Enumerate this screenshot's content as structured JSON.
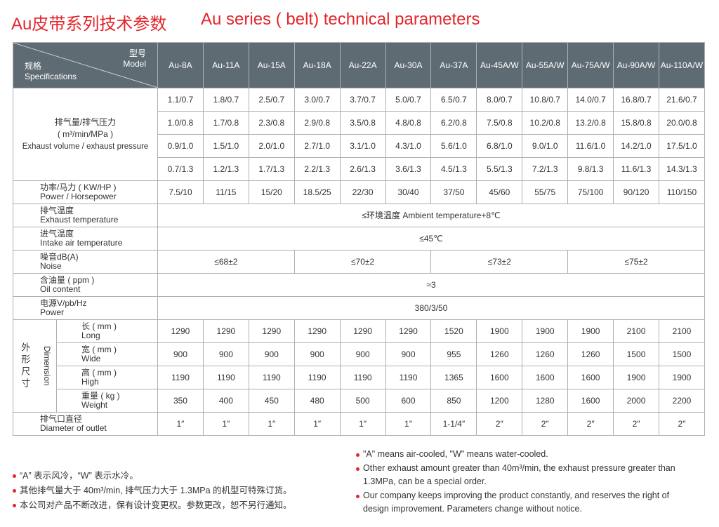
{
  "title_cn": "Au皮带系列技术参数",
  "title_en": "Au series ( belt) technical parameters",
  "colors": {
    "title": "#e3262c",
    "header_bg": "#5f6b73"
  },
  "header": {
    "model_cn": "型号",
    "model_en": "Model",
    "spec_cn": "规格",
    "spec_en": "Specifications",
    "models": [
      "Au-8A",
      "Au-11A",
      "Au-15A",
      "Au-18A",
      "Au-22A",
      "Au-30A",
      "Au-37A",
      "Au-45A/W",
      "Au-55A/W",
      "Au-75A/W",
      "Au-90A/W",
      "Au-110A/W"
    ]
  },
  "exhaust": {
    "label_cn": "排气量/排气压力",
    "label_unit": "( m³/min/MPa )",
    "label_en": "Exhaust volume / exhaust pressure",
    "rows": [
      [
        "1.1/0.7",
        "1.8/0.7",
        "2.5/0.7",
        "3.0/0.7",
        "3.7/0.7",
        "5.0/0.7",
        "6.5/0.7",
        "8.0/0.7",
        "10.8/0.7",
        "14.0/0.7",
        "16.8/0.7",
        "21.6/0.7"
      ],
      [
        "1.0/0.8",
        "1.7/0.8",
        "2.3/0.8",
        "2.9/0.8",
        "3.5/0.8",
        "4.8/0.8",
        "6.2/0.8",
        "7.5/0.8",
        "10.2/0.8",
        "13.2/0.8",
        "15.8/0.8",
        "20.0/0.8"
      ],
      [
        "0.9/1.0",
        "1.5/1.0",
        "2.0/1.0",
        "2.7/1.0",
        "3.1/1.0",
        "4.3/1.0",
        "5.6/1.0",
        "6.8/1.0",
        "9.0/1.0",
        "11.6/1.0",
        "14.2/1.0",
        "17.5/1.0"
      ],
      [
        "0.7/1.3",
        "1.2/1.3",
        "1.7/1.3",
        "2.2/1.3",
        "2.6/1.3",
        "3.6/1.3",
        "4.5/1.3",
        "5.5/1.3",
        "7.2/1.3",
        "9.8/1.3",
        "11.6/1.3",
        "14.3/1.3"
      ]
    ]
  },
  "power": {
    "label_cn": "功率/马力 ( KW/HP )",
    "label_en": "Power / Horsepower",
    "values": [
      "7.5/10",
      "11/15",
      "15/20",
      "18.5/25",
      "22/30",
      "30/40",
      "37/50",
      "45/60",
      "55/75",
      "75/100",
      "90/120",
      "110/150"
    ]
  },
  "exhaust_temp": {
    "label_cn": "排气温度",
    "label_en": "Exhaust temperature",
    "value": "≤环境温度 Ambient temperature+8℃"
  },
  "intake_temp": {
    "label_cn": "进气温度",
    "label_en": "Intake air temperature",
    "value": "≤45℃"
  },
  "noise": {
    "label_cn": "噪音dB(A)",
    "label_en": "Noise",
    "values": [
      "≤68±2",
      "≤70±2",
      "≤73±2",
      "≤75±2"
    ]
  },
  "oil": {
    "label_cn": "含油量 ( ppm )",
    "label_en": "Oil content",
    "value": "≈3"
  },
  "supply": {
    "label_cn": "电源V/pb/Hz",
    "label_en": "Power",
    "value": "380/3/50"
  },
  "dimension": {
    "label_cn": "外形尺寸",
    "label_en": "Dimension",
    "rows": [
      {
        "label_cn": "长 ( mm )",
        "label_en": "Long",
        "values": [
          "1290",
          "1290",
          "1290",
          "1290",
          "1290",
          "1290",
          "1520",
          "1900",
          "1900",
          "1900",
          "2100",
          "2100"
        ]
      },
      {
        "label_cn": "宽 ( mm )",
        "label_en": "Wide",
        "values": [
          "900",
          "900",
          "900",
          "900",
          "900",
          "900",
          "955",
          "1260",
          "1260",
          "1260",
          "1500",
          "1500"
        ]
      },
      {
        "label_cn": "高 ( mm )",
        "label_en": "High",
        "values": [
          "1190",
          "1190",
          "1190",
          "1190",
          "1190",
          "1190",
          "1365",
          "1600",
          "1600",
          "1600",
          "1900",
          "1900"
        ]
      },
      {
        "label_cn": "重量 ( kg )",
        "label_en": "Weight",
        "values": [
          "350",
          "400",
          "450",
          "480",
          "500",
          "600",
          "850",
          "1200",
          "1280",
          "1600",
          "2000",
          "2200"
        ]
      }
    ]
  },
  "outlet": {
    "label_cn": "排气口直径",
    "label_en": "Diameter of outlet",
    "values": [
      "1″",
      "1″",
      "1″",
      "1″",
      "1″",
      "1″",
      "1-1/4″",
      "2″",
      "2″",
      "2″",
      "2″",
      "2″"
    ]
  },
  "notes_cn": [
    "“A” 表示风冷，“W” 表示水冷。",
    "其他排气量大于 40m³/min, 排气压力大于 1.3MPa 的机型可特殊订货。",
    "本公司对产品不断改进，保有设计变更权。参数更改，恕不另行通知。"
  ],
  "notes_en": [
    "\"A\" means air-cooled, \"W\" means water-cooled.",
    "Other exhaust amount greater than 40m³/min, the exhaust pressure greater than",
    "1.3MPa, can be a special order.",
    "Our company keeps improving the product constantly, and reserves the right of",
    "design improvement. Parameters change without notice."
  ]
}
